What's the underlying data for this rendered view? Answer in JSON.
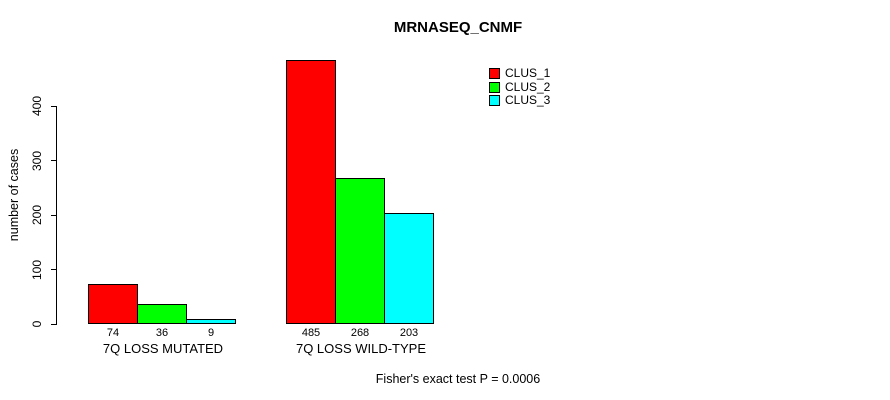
{
  "title": "MRNASEQ_CNMF",
  "caption": "Fisher's exact test P = 0.0006",
  "y_axis_label": "number of cases",
  "colors": {
    "background": "#FFFFFF",
    "axis": "#000000",
    "bar_border": "#000000",
    "clus_1": "#FF0000",
    "clus_2": "#00FF00",
    "clus_3": "#00FFFF"
  },
  "chart_data": {
    "type": "bar",
    "title": "MRNASEQ_CNMF",
    "xlabel": "",
    "ylabel": "number of cases",
    "ylim": [
      0,
      485
    ],
    "yticks": [
      0,
      100,
      200,
      300,
      400
    ],
    "grid": false,
    "legend_position": "top-right",
    "categories": [
      "7Q LOSS MUTATED",
      "7Q LOSS WILD-TYPE"
    ],
    "series": [
      {
        "name": "CLUS_1",
        "color": "#FF0000",
        "values": [
          74,
          485
        ]
      },
      {
        "name": "CLUS_2",
        "color": "#00FF00",
        "values": [
          36,
          268
        ]
      },
      {
        "name": "CLUS_3",
        "color": "#00FFFF",
        "values": [
          9,
          203
        ]
      }
    ],
    "bar_value_labels": [
      [
        74,
        36,
        9
      ],
      [
        485,
        268,
        203
      ]
    ],
    "annotation": "Fisher's exact test P = 0.0006"
  }
}
